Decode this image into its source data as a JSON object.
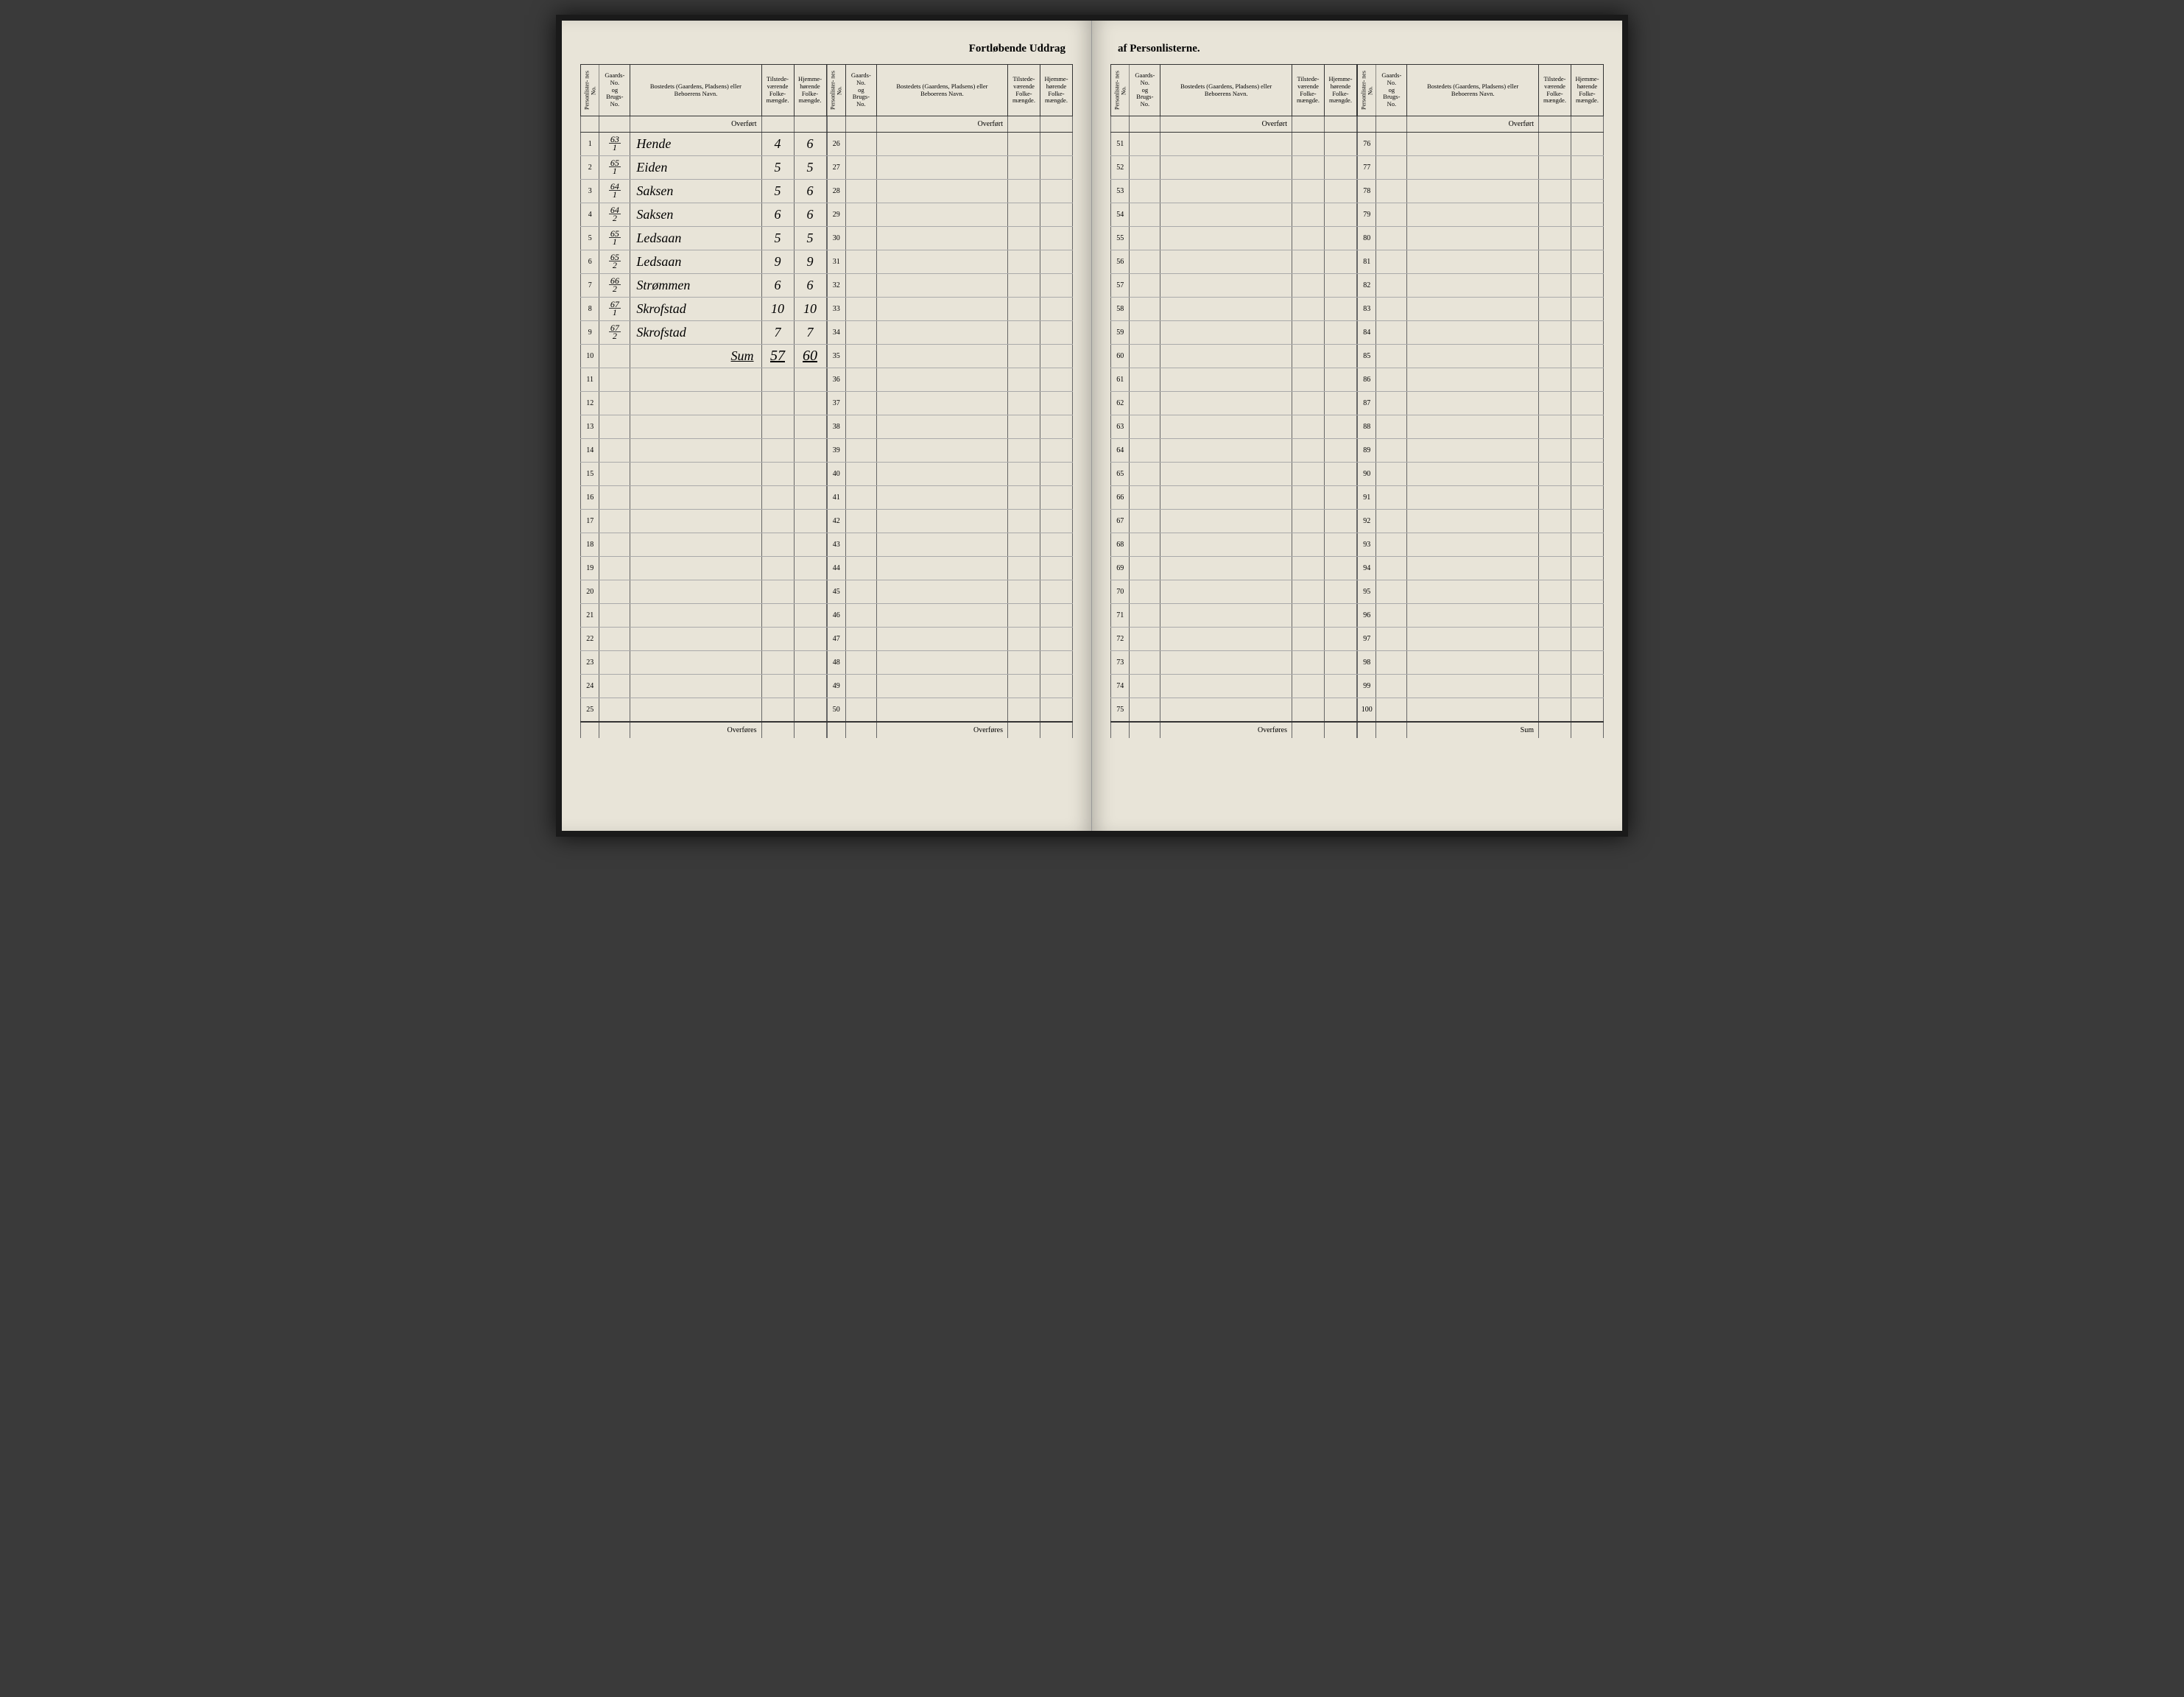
{
  "title_left": "Fortløbende Uddrag",
  "title_right": "af Personlisterne.",
  "headers": {
    "personliste": "Personlister-\nnes No.",
    "gaards": "Gaards-\nNo.\nog\nBrugs-\nNo.",
    "bosted": "Bostedets (Gaardens, Pladsens) eller\nBeboerens Navn.",
    "tilstede": "Tilstede-\nværende\nFolke-\nmængde.",
    "hjemme": "Hjemme-\nhørende\nFolke-\nmængde."
  },
  "overfort": "Overført",
  "overfores": "Overføres",
  "sum_footer": "Sum",
  "sum_label": "Sum",
  "entries": [
    {
      "n": 1,
      "g_top": "63",
      "g_bot": "1",
      "name": "Hende",
      "t": "4",
      "h": "6"
    },
    {
      "n": 2,
      "g_top": "65",
      "g_bot": "1",
      "name": "Eiden",
      "t": "5",
      "h": "5"
    },
    {
      "n": 3,
      "g_top": "64",
      "g_bot": "1",
      "name": "Saksen",
      "t": "5",
      "h": "6"
    },
    {
      "n": 4,
      "g_top": "64",
      "g_bot": "2",
      "name": "Saksen",
      "t": "6",
      "h": "6"
    },
    {
      "n": 5,
      "g_top": "65",
      "g_bot": "1",
      "name": "Ledsaan",
      "t": "5",
      "h": "5"
    },
    {
      "n": 6,
      "g_top": "65",
      "g_bot": "2",
      "name": "Ledsaan",
      "t": "9",
      "h": "9"
    },
    {
      "n": 7,
      "g_top": "66",
      "g_bot": "2",
      "name": "Strømmen",
      "t": "6",
      "h": "6"
    },
    {
      "n": 8,
      "g_top": "67",
      "g_bot": "1",
      "name": "Skrofstad",
      "t": "10",
      "h": "10"
    },
    {
      "n": 9,
      "g_top": "67",
      "g_bot": "2",
      "name": "Skrofstad",
      "t": "7",
      "h": "7"
    }
  ],
  "sum": {
    "t": "57",
    "h": "60"
  },
  "sections": [
    {
      "start": 1,
      "end": 25,
      "footer": "Overføres"
    },
    {
      "start": 26,
      "end": 50,
      "footer": "Overføres"
    },
    {
      "start": 51,
      "end": 75,
      "footer": "Overføres"
    },
    {
      "start": 76,
      "end": 100,
      "footer": "Sum"
    }
  ],
  "colors": {
    "page_bg": "#e8e4d8",
    "ink": "#2a2a2a",
    "rule": "#666666"
  }
}
